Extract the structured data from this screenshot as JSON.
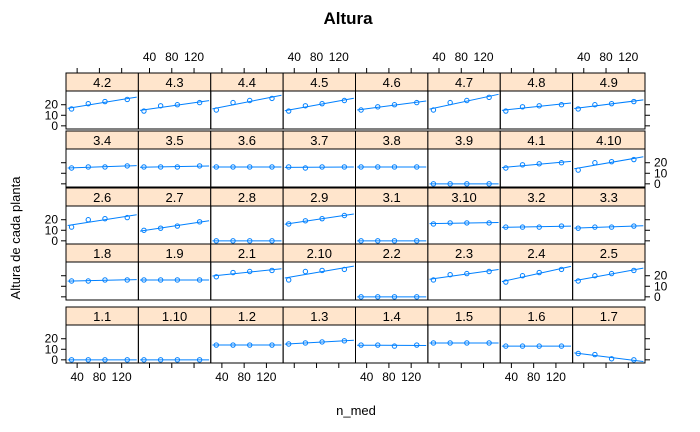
{
  "chart_data": {
    "type": "scatter",
    "title": "Altura",
    "xlabel": "n_med",
    "ylabel": "Altura de cada planta",
    "xlim": [
      20,
      150
    ],
    "ylim": [
      -3,
      33
    ],
    "x_ticks": [
      40,
      80,
      120
    ],
    "y_ticks": [
      0,
      10,
      20
    ],
    "colors": {
      "strip": "#ffe5cc",
      "points": "#0080ff",
      "frame": "#000000"
    },
    "layout": {
      "columns": 8,
      "rows": 5,
      "order": "rows from bottom, left to right"
    },
    "x": [
      30,
      60,
      90,
      130
    ],
    "panels": [
      {
        "label": "1.1",
        "values": [
          0,
          0,
          0,
          0
        ]
      },
      {
        "label": "1.10",
        "values": [
          0,
          0,
          0,
          0
        ]
      },
      {
        "label": "1.2",
        "values": [
          14,
          14,
          14,
          14
        ]
      },
      {
        "label": "1.3",
        "values": [
          15,
          16,
          17,
          18
        ]
      },
      {
        "label": "1.4",
        "values": [
          14,
          14,
          13,
          14
        ]
      },
      {
        "label": "1.5",
        "values": [
          16,
          16,
          16,
          16
        ]
      },
      {
        "label": "1.6",
        "values": [
          13,
          13,
          13,
          13
        ]
      },
      {
        "label": "1.7",
        "values": [
          6,
          5,
          1,
          0
        ]
      },
      {
        "label": "1.8",
        "values": [
          15,
          15,
          16,
          16
        ]
      },
      {
        "label": "1.9",
        "values": [
          16,
          16,
          16,
          16
        ]
      },
      {
        "label": "2.1",
        "values": [
          19,
          23,
          24,
          25
        ]
      },
      {
        "label": "2.10",
        "values": [
          16,
          24,
          25,
          26
        ]
      },
      {
        "label": "2.2",
        "values": [
          0,
          0,
          0,
          0
        ]
      },
      {
        "label": "2.3",
        "values": [
          16,
          21,
          22,
          24
        ]
      },
      {
        "label": "2.4",
        "values": [
          14,
          20,
          23,
          26
        ]
      },
      {
        "label": "2.5",
        "values": [
          15,
          20,
          22,
          25
        ]
      },
      {
        "label": "2.6",
        "values": [
          13,
          20,
          21,
          22
        ]
      },
      {
        "label": "2.7",
        "values": [
          10,
          12,
          14,
          18
        ]
      },
      {
        "label": "2.8",
        "values": [
          0,
          0,
          0,
          0
        ]
      },
      {
        "label": "2.9",
        "values": [
          16,
          19,
          21,
          24
        ]
      },
      {
        "label": "3.1",
        "values": [
          0,
          0,
          0,
          0
        ]
      },
      {
        "label": "3.10",
        "values": [
          16,
          17,
          17,
          17
        ]
      },
      {
        "label": "3.2",
        "values": [
          13,
          13,
          13,
          14
        ]
      },
      {
        "label": "3.3",
        "values": [
          12,
          13,
          13,
          14
        ]
      },
      {
        "label": "3.4",
        "values": [
          15,
          16,
          16,
          17
        ]
      },
      {
        "label": "3.5",
        "values": [
          16,
          16,
          16,
          17
        ]
      },
      {
        "label": "3.6",
        "values": [
          16,
          16,
          16,
          16
        ]
      },
      {
        "label": "3.7",
        "values": [
          16,
          15,
          16,
          16
        ]
      },
      {
        "label": "3.8",
        "values": [
          16,
          16,
          16,
          16
        ]
      },
      {
        "label": "3.9",
        "values": [
          0,
          0,
          0,
          0
        ]
      },
      {
        "label": "4.1",
        "values": [
          15,
          18,
          19,
          20
        ]
      },
      {
        "label": "4.10",
        "values": [
          13,
          20,
          21,
          23
        ]
      },
      {
        "label": "4.2",
        "values": [
          16,
          21,
          23,
          25
        ]
      },
      {
        "label": "4.3",
        "values": [
          14,
          19,
          20,
          22
        ]
      },
      {
        "label": "4.4",
        "values": [
          15,
          22,
          24,
          26
        ]
      },
      {
        "label": "4.5",
        "values": [
          14,
          19,
          21,
          24
        ]
      },
      {
        "label": "4.6",
        "values": [
          15,
          18,
          20,
          22
        ]
      },
      {
        "label": "4.7",
        "values": [
          15,
          22,
          24,
          27
        ]
      },
      {
        "label": "4.8",
        "values": [
          14,
          18,
          19,
          20
        ]
      },
      {
        "label": "4.9",
        "values": [
          16,
          20,
          21,
          23
        ]
      }
    ]
  }
}
